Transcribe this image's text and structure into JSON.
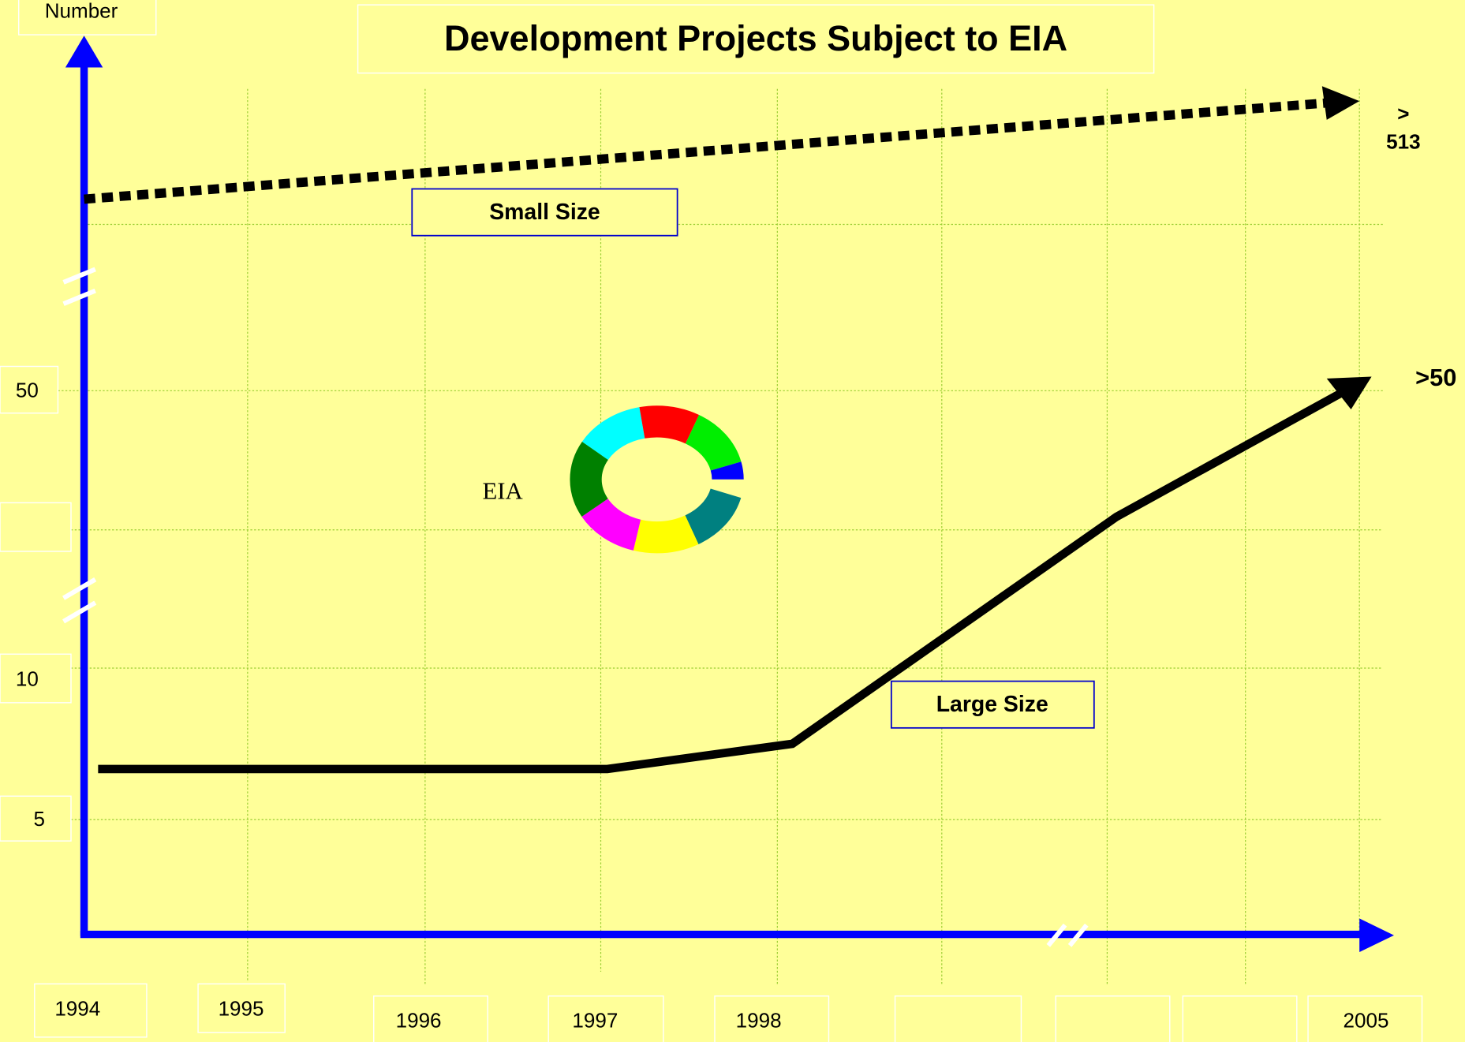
{
  "header": {
    "title": "Development Projects  Subject to EIA"
  },
  "y_axis": {
    "title": "Number",
    "labels": [
      "50",
      "10",
      "5"
    ]
  },
  "x_axis": {
    "labels": [
      "1994",
      "1995",
      "1996",
      "1997",
      "1998",
      "2005"
    ]
  },
  "series": {
    "small": {
      "name": "Small Size",
      "end_label_lines": [
        ">",
        "513"
      ]
    },
    "large": {
      "name": "Large Size",
      "end_label": ">50"
    }
  },
  "cycle": {
    "label": "EIA"
  }
}
